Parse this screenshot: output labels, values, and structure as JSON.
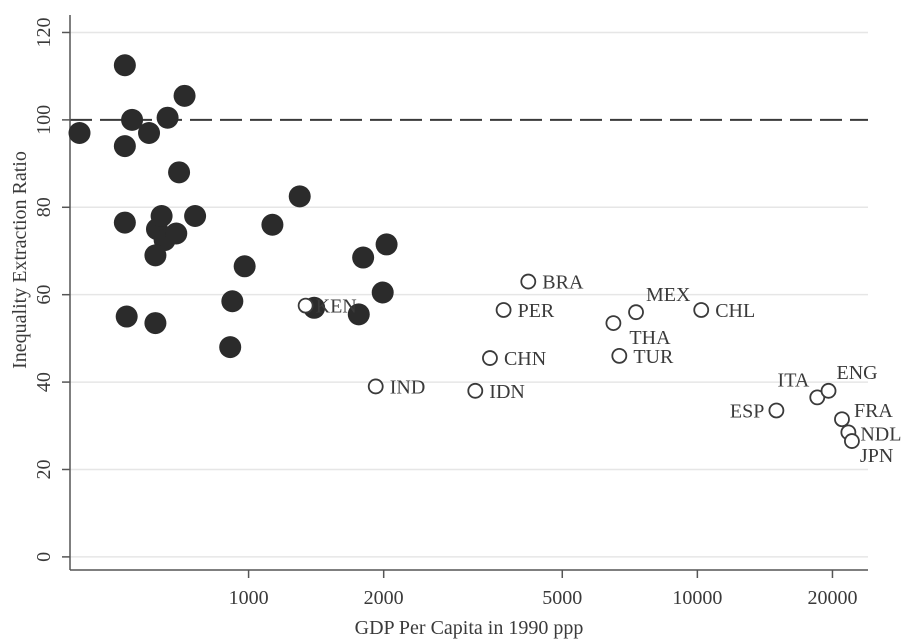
{
  "chart_data": {
    "type": "scatter",
    "xlabel": "GDP Per Capita in 1990 ppp",
    "ylabel": "Inequality Extraction Ratio",
    "x_scale": "log",
    "xlim": [
      400,
      24000
    ],
    "ylim": [
      -3,
      124
    ],
    "x_ticks": [
      1000,
      2000,
      5000,
      10000,
      20000
    ],
    "x_tick_labels": [
      "1000",
      "2000",
      "5000",
      "10000",
      "20000"
    ],
    "y_ticks": [
      0,
      20,
      40,
      60,
      80,
      100,
      120
    ],
    "y_tick_labels": [
      "0",
      "20",
      "40",
      "60",
      "80",
      "100",
      "120"
    ],
    "grid": "horizontal",
    "reference_line": {
      "y": 100,
      "style": "dashed"
    },
    "colors": {
      "filled": "#2b2b2b",
      "hollow_stroke": "#3a3a3a",
      "grid": "#e6e6e6",
      "axis": "#555555"
    },
    "series": [
      {
        "marker": "filled-circle",
        "points": [
          {
            "x": 420,
            "y": 97
          },
          {
            "x": 530,
            "y": 112.5
          },
          {
            "x": 530,
            "y": 94
          },
          {
            "x": 550,
            "y": 100
          },
          {
            "x": 600,
            "y": 97
          },
          {
            "x": 660,
            "y": 100.5
          },
          {
            "x": 720,
            "y": 105.5
          },
          {
            "x": 700,
            "y": 88
          },
          {
            "x": 530,
            "y": 76.5
          },
          {
            "x": 625,
            "y": 75
          },
          {
            "x": 640,
            "y": 78
          },
          {
            "x": 650,
            "y": 72.5
          },
          {
            "x": 690,
            "y": 74
          },
          {
            "x": 760,
            "y": 78
          },
          {
            "x": 620,
            "y": 69
          },
          {
            "x": 535,
            "y": 55
          },
          {
            "x": 620,
            "y": 53.5
          },
          {
            "x": 920,
            "y": 58.5
          },
          {
            "x": 980,
            "y": 66.5
          },
          {
            "x": 910,
            "y": 48
          },
          {
            "x": 1130,
            "y": 76
          },
          {
            "x": 1300,
            "y": 82.5
          },
          {
            "x": 1400,
            "y": 57
          },
          {
            "x": 1760,
            "y": 55.5
          },
          {
            "x": 1800,
            "y": 68.5
          },
          {
            "x": 2030,
            "y": 71.5
          },
          {
            "x": 1990,
            "y": 60.5
          }
        ]
      },
      {
        "marker": "hollow-circle",
        "points": [
          {
            "x": 1340,
            "y": 57.5,
            "label": "KEN"
          },
          {
            "x": 1920,
            "y": 39,
            "label": "IND"
          },
          {
            "x": 3200,
            "y": 38,
            "label": "IDN"
          },
          {
            "x": 3450,
            "y": 45.5,
            "label": "CHN"
          },
          {
            "x": 3700,
            "y": 56.5,
            "label": "PER"
          },
          {
            "x": 4200,
            "y": 63,
            "label": "BRA"
          },
          {
            "x": 6500,
            "y": 53.5,
            "label": "THA"
          },
          {
            "x": 6700,
            "y": 46,
            "label": "TUR"
          },
          {
            "x": 7300,
            "y": 56,
            "label": "MEX"
          },
          {
            "x": 10200,
            "y": 56.5,
            "label": "CHL"
          },
          {
            "x": 15000,
            "y": 33.5,
            "label": "ESP"
          },
          {
            "x": 18500,
            "y": 36.5,
            "label": "ITA"
          },
          {
            "x": 19600,
            "y": 38,
            "label": "ENG"
          },
          {
            "x": 21000,
            "y": 31.5,
            "label": "FRA"
          },
          {
            "x": 21700,
            "y": 28.5,
            "label": "NDL"
          },
          {
            "x": 22100,
            "y": 26.5,
            "label": "JPN"
          }
        ]
      }
    ]
  }
}
